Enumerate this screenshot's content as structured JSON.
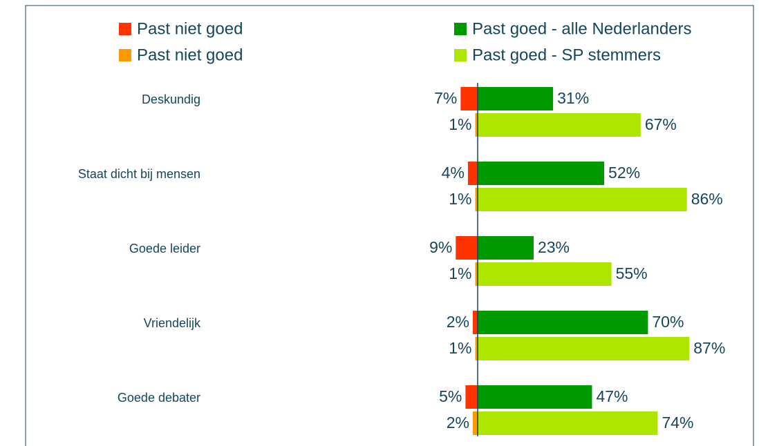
{
  "chart_data": {
    "type": "diverging-bar",
    "categories": [
      "Deskundig",
      "Staat dicht bij mensen",
      "Goede leider",
      "Vriendelijk",
      "Goede debater"
    ],
    "series": [
      {
        "name": "Past niet goed",
        "color": "#ff3300",
        "values": [
          -7,
          -4,
          -9,
          -2,
          -5
        ],
        "value_labels": [
          "7%",
          "4%",
          "9%",
          "2%",
          "5%"
        ]
      },
      {
        "name": "Past niet goed",
        "color": "#ff9900",
        "values": [
          -1,
          -1,
          -1,
          -1,
          -2
        ],
        "value_labels": [
          "1%",
          "1%",
          "1%",
          "1%",
          "2%"
        ]
      },
      {
        "name": "Past goed - alle Nederlanders",
        "color": "#009900",
        "values": [
          31,
          52,
          23,
          70,
          47
        ],
        "value_labels": [
          "31%",
          "52%",
          "23%",
          "70%",
          "47%"
        ]
      },
      {
        "name": "Past goed - SP stemmers",
        "color": "#aee600",
        "values": [
          67,
          86,
          55,
          87,
          74
        ],
        "value_labels": [
          "67%",
          "86%",
          "55%",
          "87%",
          "74%"
        ]
      }
    ],
    "xlim": [
      -20,
      100
    ]
  }
}
